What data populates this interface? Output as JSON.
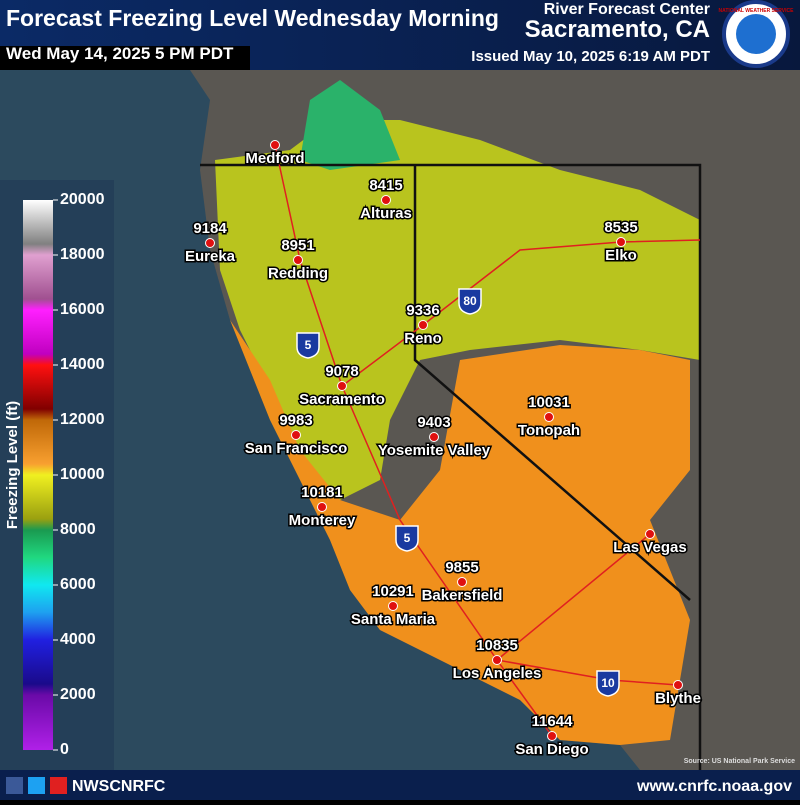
{
  "header": {
    "title": "Forecast Freezing Level Wednesday Morning",
    "valid_time": "Wed May 14, 2025 5 PM PDT",
    "center": "River Forecast Center",
    "location": "Sacramento, CA",
    "issued": "Issued May 10, 2025 6:19 AM PDT",
    "logo_text": "NATIONAL WEATHER SERVICE"
  },
  "legend": {
    "title": "Freezing Level (ft)",
    "ticks": [
      0,
      2000,
      4000,
      6000,
      8000,
      10000,
      12000,
      14000,
      16000,
      18000,
      20000
    ]
  },
  "highways": [
    "80",
    "5",
    "5",
    "10"
  ],
  "cities": [
    {
      "name": "Medford"
    },
    {
      "name": "Eureka",
      "value": 9184
    },
    {
      "name": "Redding",
      "value": 8951
    },
    {
      "name": "Alturas",
      "value": 8415
    },
    {
      "name": "Elko",
      "value": 8535
    },
    {
      "name": "Reno",
      "value": 9336
    },
    {
      "name": "Sacramento",
      "value": 9078
    },
    {
      "name": "San Francisco",
      "value": 9983
    },
    {
      "name": "Yosemite Valley",
      "value": 9403
    },
    {
      "name": "Tonopah",
      "value": 10031
    },
    {
      "name": "Monterey",
      "value": 10181
    },
    {
      "name": "Las Vegas"
    },
    {
      "name": "Bakersfield",
      "value": 9855
    },
    {
      "name": "Santa Maria",
      "value": 10291
    },
    {
      "name": "Los Angeles",
      "value": 10835
    },
    {
      "name": "Blythe"
    },
    {
      "name": "San Diego",
      "value": 11644
    }
  ],
  "source": "Source: US National Park Service",
  "footer": {
    "handle": "NWSCNRFC",
    "url": "www.cnrfc.noaa.gov"
  }
}
